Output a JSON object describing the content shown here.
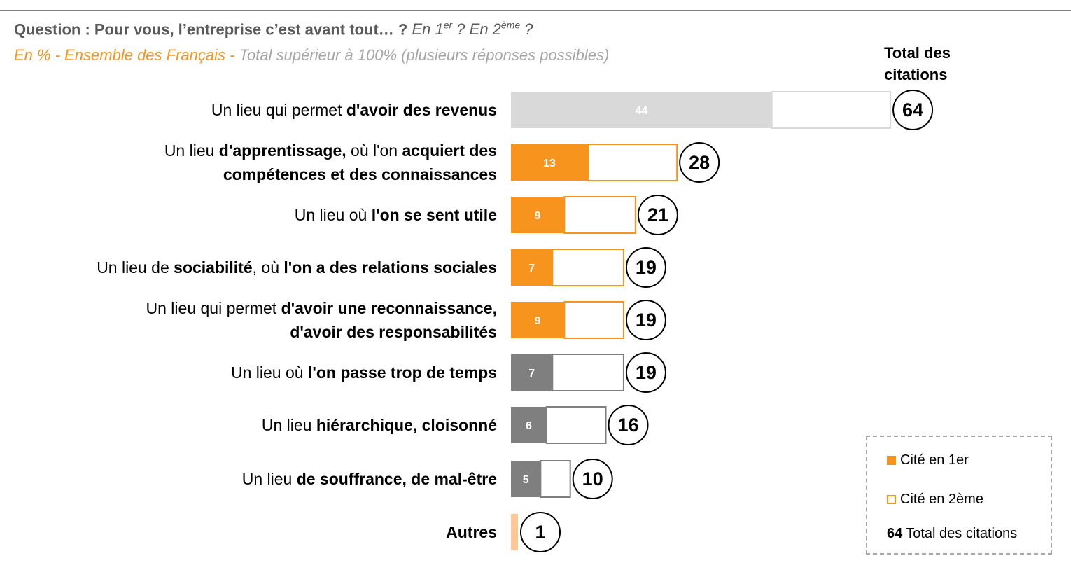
{
  "header": {
    "question_prefix": "Question : Pour vous, l’entreprise c’est avant tout… ?",
    "q_part1": "En 1",
    "q_sup1": "er",
    "q_part2": "? En 2",
    "q_sup2": "ème",
    "q_end": "?",
    "sub_orange": "En % - Ensemble des Français -",
    "sub_grey": "Total supérieur à 100% (plusieurs réponses possibles)"
  },
  "total_header": "Total des citations",
  "labels": [
    [
      {
        "t": "Un lieu qui permet ",
        "b": false
      },
      {
        "t": "d'avoir des revenus",
        "b": true
      }
    ],
    [
      {
        "t": "Un lieu ",
        "b": false
      },
      {
        "t": "d'apprentissage,",
        "b": true
      },
      {
        "t": " où l'on ",
        "b": false
      },
      {
        "t": "acquiert des compétences et des connaissances",
        "b": true
      }
    ],
    [
      {
        "t": "Un lieu où ",
        "b": false
      },
      {
        "t": "l'on se sent utile",
        "b": true
      }
    ],
    [
      {
        "t": "Un lieu de ",
        "b": false
      },
      {
        "t": "sociabilité",
        "b": true
      },
      {
        "t": ", où ",
        "b": false
      },
      {
        "t": "l'on a des relations sociales",
        "b": true
      }
    ],
    [
      {
        "t": "Un lieu qui permet ",
        "b": false
      },
      {
        "t": "d'avoir une reconnaissance, d'avoir des responsabilités",
        "b": true
      }
    ],
    [
      {
        "t": "Un lieu où ",
        "b": false
      },
      {
        "t": "l'on passe trop de temps",
        "b": true
      }
    ],
    [
      {
        "t": "Un lieu ",
        "b": false
      },
      {
        "t": "hiérarchique, cloisonné",
        "b": true
      }
    ],
    [
      {
        "t": "Un lieu ",
        "b": false
      },
      {
        "t": "de souffrance, de mal-être",
        "b": true
      }
    ],
    [
      {
        "t": "Autres",
        "b": true
      }
    ]
  ],
  "legend": {
    "first": "Cité en 1er",
    "second": "Cité en 2ème",
    "total_num": "64",
    "total": "Total des citations"
  },
  "colors": {
    "orange": "#f7941d",
    "grey": "#7f7f7f",
    "light_grey": "#d9d9d9",
    "light_orange": "#fbc89a"
  },
  "chart_data": {
    "type": "bar",
    "orientation": "horizontal",
    "stacked": true,
    "categories": [
      "Un lieu qui permet d'avoir des revenus",
      "Un lieu d'apprentissage, où l'on acquiert des compétences et des connaissances",
      "Un lieu où l'on se sent utile",
      "Un lieu de sociabilité, où l'on a des relations sociales",
      "Un lieu qui permet d'avoir une reconnaissance, d'avoir des responsabilités",
      "Un lieu où l'on passe trop de temps",
      "Un lieu hiérarchique, cloisonné",
      "Un lieu de souffrance, de mal-être",
      "Autres"
    ],
    "series": [
      {
        "name": "Cité en 1er",
        "values": [
          44,
          13,
          9,
          7,
          9,
          7,
          6,
          5,
          1
        ]
      },
      {
        "name": "Cité en 2ème",
        "values": [
          20,
          15,
          12,
          12,
          10,
          12,
          10,
          5,
          0
        ]
      }
    ],
    "totals": [
      64,
      28,
      21,
      19,
      19,
      19,
      16,
      10,
      1
    ],
    "first_labels": [
      "44",
      "13",
      "9",
      "7",
      "9",
      "7",
      "6",
      "5",
      ""
    ],
    "total_labels": [
      "64",
      "28",
      "21",
      "19",
      "19",
      "19",
      "16",
      "10",
      "1"
    ],
    "bar_styles": [
      "lightgrey",
      "orange",
      "orange",
      "orange",
      "orange",
      "grey",
      "grey",
      "grey",
      "lightorange"
    ],
    "xlim": [
      0,
      64
    ],
    "legend_position": "bottom-right"
  }
}
